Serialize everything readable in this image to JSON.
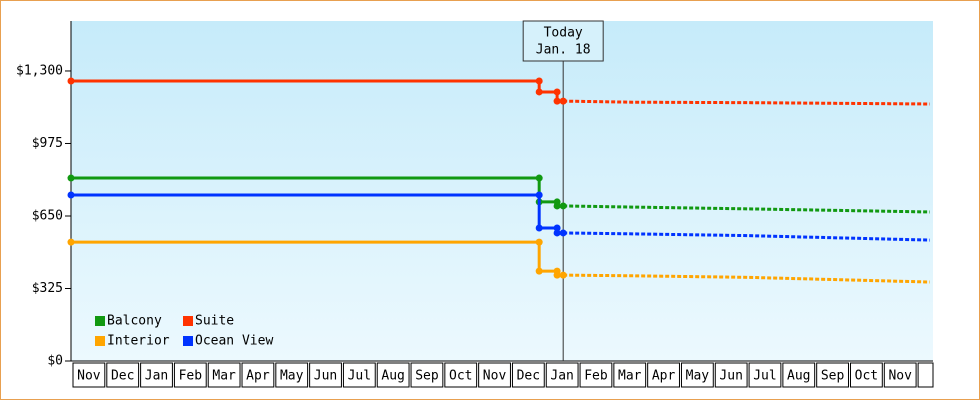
{
  "chart_data": {
    "type": "step-line",
    "categories": [
      "Nov",
      "Dec",
      "Jan",
      "Feb",
      "Mar",
      "Apr",
      "May",
      "Jun",
      "Jul",
      "Aug",
      "Sep",
      "Oct",
      "Nov",
      "Dec",
      "Jan",
      "Feb",
      "Mar",
      "Apr",
      "May",
      "Jun",
      "Jul",
      "Aug",
      "Sep",
      "Oct",
      "Nov"
    ],
    "xlim": [
      0,
      25.5
    ],
    "ylim": [
      0,
      1524
    ],
    "yticks": [
      {
        "value": 0,
        "label": "$0"
      },
      {
        "value": 325,
        "label": "$325"
      },
      {
        "value": 650,
        "label": "$650"
      },
      {
        "value": 975,
        "label": "$975"
      },
      {
        "value": 1300,
        "label": "$1,300"
      }
    ],
    "annotation": {
      "title": "Today",
      "date": "Jan. 18",
      "x": 14.56
    },
    "series": [
      {
        "name": "Balcony",
        "color": "#119911",
        "x": [
          0,
          13.85,
          13.85,
          14.38,
          14.38,
          14.56
        ],
        "values": [
          820,
          820,
          713,
          713,
          695,
          695
        ],
        "forecast_x": [
          14.56,
          16.6,
          20,
          25.4
        ],
        "forecast_values": [
          695,
          690,
          682,
          668
        ]
      },
      {
        "name": "Suite",
        "color": "#ff3300",
        "x": [
          0,
          13.85,
          13.85,
          14.38,
          14.38,
          14.56
        ],
        "values": [
          1255,
          1255,
          1206,
          1206,
          1165,
          1165
        ],
        "forecast_x": [
          14.56,
          16.6,
          20,
          25.4
        ],
        "forecast_values": [
          1165,
          1160,
          1158,
          1152
        ]
      },
      {
        "name": "Interior",
        "color": "#ffa500",
        "x": [
          0,
          13.85,
          13.85,
          14.38,
          14.38,
          14.56
        ],
        "values": [
          533,
          533,
          403,
          403,
          385,
          385
        ],
        "forecast_x": [
          14.56,
          16.6,
          20,
          25.4
        ],
        "forecast_values": [
          385,
          382,
          375,
          354
        ]
      },
      {
        "name": "Ocean View",
        "color": "#0033ff",
        "x": [
          0,
          13.85,
          13.85,
          14.38,
          14.38,
          14.56
        ],
        "values": [
          744,
          744,
          596,
          596,
          574,
          574
        ],
        "forecast_x": [
          14.56,
          16.6,
          20,
          25.4
        ],
        "forecast_values": [
          574,
          570,
          562,
          542
        ]
      }
    ]
  }
}
